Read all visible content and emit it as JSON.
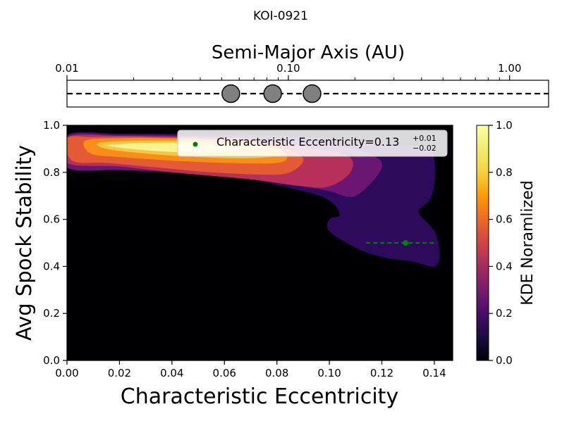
{
  "figure_title": "KOI-0921",
  "chart_data": [
    {
      "type": "scatter",
      "panel": "top",
      "title": "",
      "xlabel": "Semi-Major Axis (AU)",
      "xscale": "log",
      "xlim": [
        0.01,
        1.5
      ],
      "xtick_values": [
        0.01,
        0.1,
        1.0
      ],
      "xtick_labels": [
        "0.01",
        "0.10",
        "1.00"
      ],
      "planets": {
        "semi_major_axis_au": [
          0.055,
          0.085,
          0.128
        ],
        "marker_color": "#808080"
      },
      "line_style": "dashed"
    },
    {
      "type": "heatmap",
      "panel": "main",
      "xlabel": "Characteristic Eccentricity",
      "ylabel": "Avg Spock Stability",
      "xlim": [
        0.0,
        0.147
      ],
      "ylim": [
        0.0,
        1.0
      ],
      "xtick_labels": [
        "0.00",
        "0.02",
        "0.04",
        "0.06",
        "0.08",
        "0.10",
        "0.12",
        "0.14"
      ],
      "ytick_labels": [
        "0.0",
        "0.2",
        "0.4",
        "0.6",
        "0.8",
        "1.0"
      ],
      "colormap": "inferno",
      "colorbar": {
        "label": "KDE Noramlized",
        "range": [
          0.0,
          1.0
        ],
        "tick_labels": [
          "0.0",
          "0.2",
          "0.4",
          "0.6",
          "0.8",
          "1.0"
        ]
      },
      "contour_levels": [
        {
          "level": 0.1,
          "color": "#2e0a5c",
          "points": [
            [
              0.0,
              0.96
            ],
            [
              0.02,
              0.965
            ],
            [
              0.05,
              0.962
            ],
            [
              0.08,
              0.955
            ],
            [
              0.1,
              0.945
            ],
            [
              0.115,
              0.93
            ],
            [
              0.13,
              0.915
            ],
            [
              0.138,
              0.905
            ],
            [
              0.14,
              0.85
            ],
            [
              0.14,
              0.75
            ],
            [
              0.138,
              0.68
            ],
            [
              0.134,
              0.63
            ],
            [
              0.14,
              0.55
            ],
            [
              0.142,
              0.45
            ],
            [
              0.14,
              0.4
            ],
            [
              0.132,
              0.42
            ],
            [
              0.12,
              0.44
            ],
            [
              0.11,
              0.48
            ],
            [
              0.1,
              0.55
            ],
            [
              0.1,
              0.6
            ],
            [
              0.104,
              0.62
            ],
            [
              0.1,
              0.68
            ],
            [
              0.09,
              0.72
            ],
            [
              0.06,
              0.79
            ],
            [
              0.02,
              0.82
            ],
            [
              0.0,
              0.825
            ]
          ]
        },
        {
          "level": 0.3,
          "color": "#6a1672",
          "points": [
            [
              0.0,
              0.955
            ],
            [
              0.02,
              0.96
            ],
            [
              0.05,
              0.955
            ],
            [
              0.08,
              0.94
            ],
            [
              0.1,
              0.92
            ],
            [
              0.115,
              0.88
            ],
            [
              0.12,
              0.82
            ],
            [
              0.11,
              0.7
            ],
            [
              0.1,
              0.72
            ],
            [
              0.09,
              0.74
            ],
            [
              0.07,
              0.77
            ],
            [
              0.04,
              0.8
            ],
            [
              0.02,
              0.81
            ],
            [
              0.0,
              0.82
            ]
          ]
        },
        {
          "level": 0.5,
          "color": "#b63059",
          "points": [
            [
              0.0,
              0.95
            ],
            [
              0.02,
              0.955
            ],
            [
              0.05,
              0.95
            ],
            [
              0.07,
              0.94
            ],
            [
              0.09,
              0.91
            ],
            [
              0.107,
              0.87
            ],
            [
              0.108,
              0.8
            ],
            [
              0.1,
              0.74
            ],
            [
              0.09,
              0.74
            ],
            [
              0.07,
              0.77
            ],
            [
              0.04,
              0.8
            ],
            [
              0.02,
              0.825
            ],
            [
              0.0,
              0.84
            ]
          ]
        },
        {
          "level": 0.7,
          "color": "#e35a34",
          "points": [
            [
              0.0,
              0.945
            ],
            [
              0.01,
              0.95
            ],
            [
              0.03,
              0.95
            ],
            [
              0.055,
              0.94
            ],
            [
              0.08,
              0.91
            ],
            [
              0.09,
              0.86
            ],
            [
              0.085,
              0.8
            ],
            [
              0.075,
              0.79
            ],
            [
              0.055,
              0.8
            ],
            [
              0.035,
              0.82
            ],
            [
              0.015,
              0.84
            ],
            [
              0.002,
              0.85
            ]
          ]
        },
        {
          "level": 0.8,
          "color": "#f98d17",
          "points": [
            [
              0.007,
              0.935
            ],
            [
              0.02,
              0.945
            ],
            [
              0.04,
              0.945
            ],
            [
              0.065,
              0.935
            ],
            [
              0.08,
              0.905
            ],
            [
              0.084,
              0.87
            ],
            [
              0.08,
              0.84
            ],
            [
              0.06,
              0.84
            ],
            [
              0.04,
              0.85
            ],
            [
              0.02,
              0.865
            ],
            [
              0.009,
              0.88
            ]
          ]
        },
        {
          "level": 0.9,
          "color": "#f6c645",
          "points": [
            [
              0.012,
              0.925
            ],
            [
              0.025,
              0.935
            ],
            [
              0.045,
              0.935
            ],
            [
              0.063,
              0.925
            ],
            [
              0.08,
              0.9
            ],
            [
              0.082,
              0.875
            ],
            [
              0.07,
              0.86
            ],
            [
              0.05,
              0.865
            ],
            [
              0.03,
              0.88
            ],
            [
              0.015,
              0.9
            ]
          ]
        },
        {
          "level": 1.0,
          "color": "#f8f290",
          "points": [
            [
              0.016,
              0.917
            ],
            [
              0.03,
              0.925
            ],
            [
              0.045,
              0.925
            ],
            [
              0.058,
              0.912
            ],
            [
              0.063,
              0.895
            ],
            [
              0.05,
              0.885
            ],
            [
              0.035,
              0.89
            ],
            [
              0.02,
              0.905
            ]
          ]
        }
      ],
      "characteristic_point": {
        "eccentricity": 0.129,
        "stability": 0.5,
        "error_minus": 0.015,
        "error_plus": 0.012,
        "color": "#008000"
      },
      "legend": {
        "location": "upper right",
        "label_prefix": "Characteristic Eccentricity=",
        "value": "0.13",
        "err_plus": "+0.01",
        "err_minus": "−0.02"
      }
    }
  ]
}
